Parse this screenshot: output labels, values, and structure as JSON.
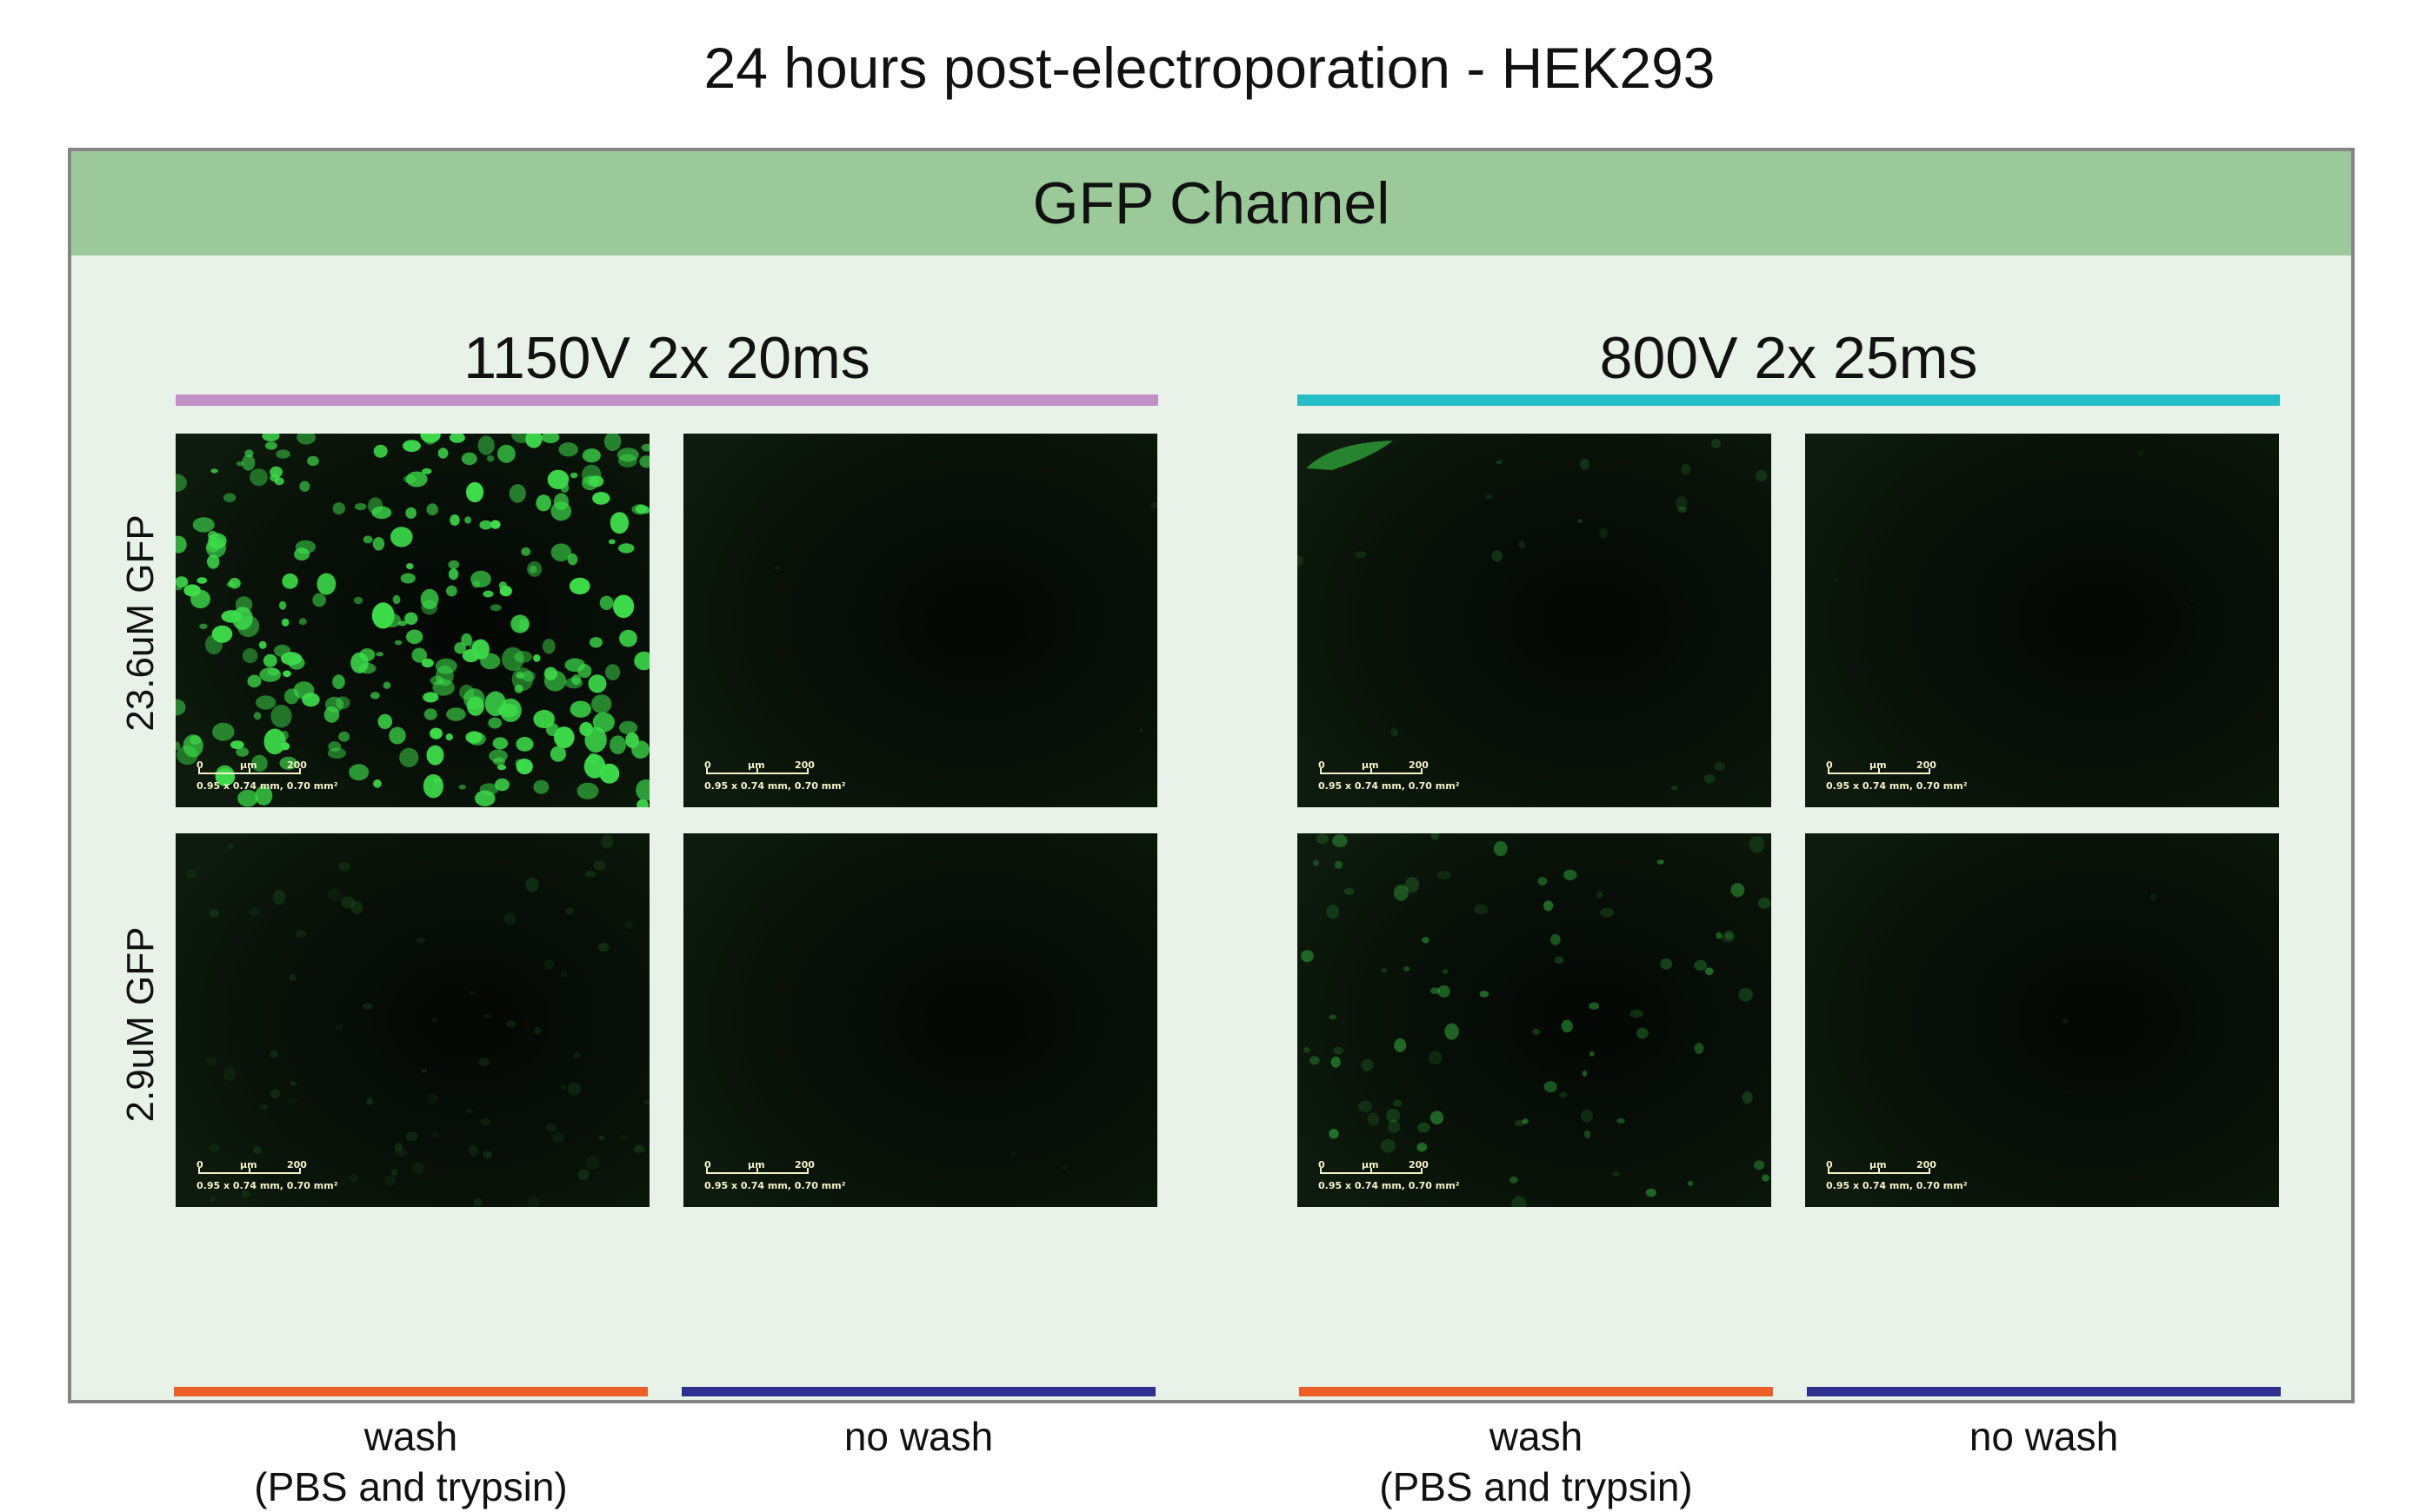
{
  "title": "24 hours post-electroporation - HEK293",
  "panel": {
    "header": "GFP Channel",
    "conditions": [
      {
        "label": "1150V 2x 20ms",
        "color": "#c38fc7"
      },
      {
        "label": "800V 2x 25ms",
        "color": "#25bdc7"
      }
    ],
    "rows": [
      {
        "label": "23.6uM GFP"
      },
      {
        "label": "2.9uM GFP"
      }
    ],
    "columns": [
      {
        "label_line1": "wash",
        "label_line2": "(PBS and trypsin)",
        "color": "#ec6027"
      },
      {
        "label_line1": "no wash",
        "label_line2": "",
        "color": "#2f3190"
      },
      {
        "label_line1": "wash",
        "label_line2": "(PBS and trypsin)",
        "color": "#ec6027"
      },
      {
        "label_line1": "no wash",
        "label_line2": "",
        "color": "#2f3190"
      }
    ],
    "scale_bar": {
      "start": "0",
      "unit": "μm",
      "end": "200",
      "area": "0.95 x 0.74 mm, 0.70 mm²"
    },
    "images": [
      {
        "condition": "1150V 2x 20ms",
        "concentration": "23.6uM GFP",
        "treatment": "wash",
        "signal": "bright"
      },
      {
        "condition": "1150V 2x 20ms",
        "concentration": "23.6uM GFP",
        "treatment": "no wash",
        "signal": "none"
      },
      {
        "condition": "800V 2x 25ms",
        "concentration": "23.6uM GFP",
        "treatment": "wash",
        "signal": "faint"
      },
      {
        "condition": "800V 2x 25ms",
        "concentration": "23.6uM GFP",
        "treatment": "no wash",
        "signal": "none"
      },
      {
        "condition": "1150V 2x 20ms",
        "concentration": "2.9uM GFP",
        "treatment": "wash",
        "signal": "very faint"
      },
      {
        "condition": "1150V 2x 20ms",
        "concentration": "2.9uM GFP",
        "treatment": "no wash",
        "signal": "none"
      },
      {
        "condition": "800V 2x 25ms",
        "concentration": "2.9uM GFP",
        "treatment": "wash",
        "signal": "weak"
      },
      {
        "condition": "800V 2x 25ms",
        "concentration": "2.9uM GFP",
        "treatment": "no wash",
        "signal": "none"
      }
    ],
    "colors": {
      "gfp": "#3ddc4a",
      "background": "#070d07",
      "header": "#9bc99a",
      "panel": "#e8f2e8"
    }
  }
}
